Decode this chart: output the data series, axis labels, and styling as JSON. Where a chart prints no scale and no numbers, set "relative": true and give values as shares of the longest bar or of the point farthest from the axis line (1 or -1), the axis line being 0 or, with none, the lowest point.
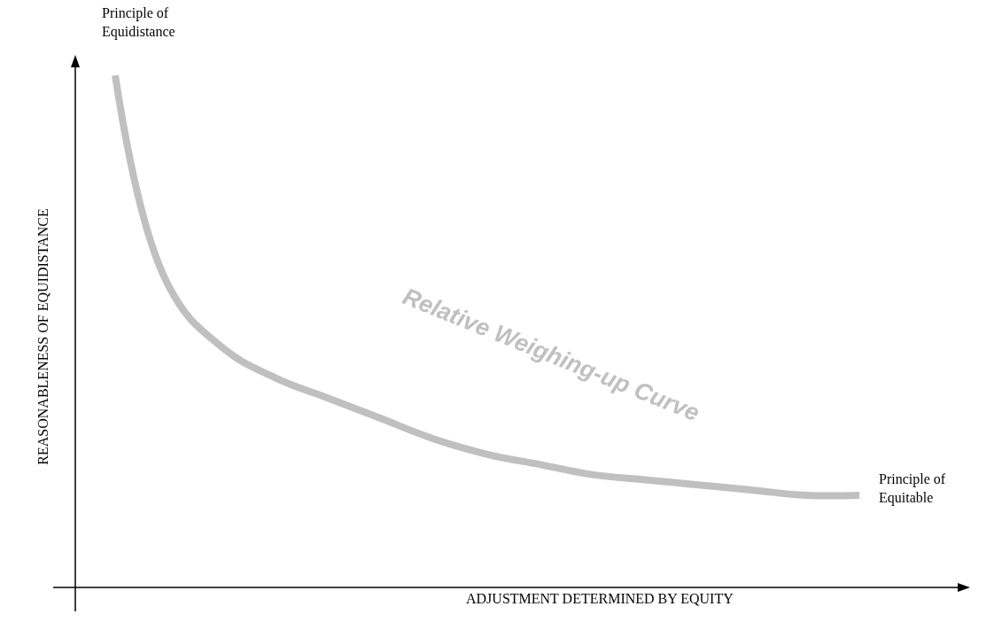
{
  "chart_data": {
    "type": "line",
    "relative": true,
    "xlabel": "ADJUSTMENT DETERMINED BY EQUITY",
    "ylabel": "REASONABLENESS OF EQUIDISTANCE",
    "categories": [
      null,
      null,
      null,
      null,
      null,
      null,
      null,
      null,
      null,
      null,
      null,
      null,
      null,
      null,
      null
    ],
    "series": [
      {
        "name": "Relative Weighing-up Curve",
        "color": "#c0c0c0",
        "values": [
          1,
          0.59,
          0.47,
          0.41,
          0.37,
          0.33,
          0.29,
          0.26,
          0.24,
          0.22,
          0.21,
          0.2,
          0.19,
          0.18,
          0.18
        ]
      }
    ],
    "annotations": [
      "Principle of\nEquidistance",
      "Principle of\nEquitable"
    ]
  }
}
